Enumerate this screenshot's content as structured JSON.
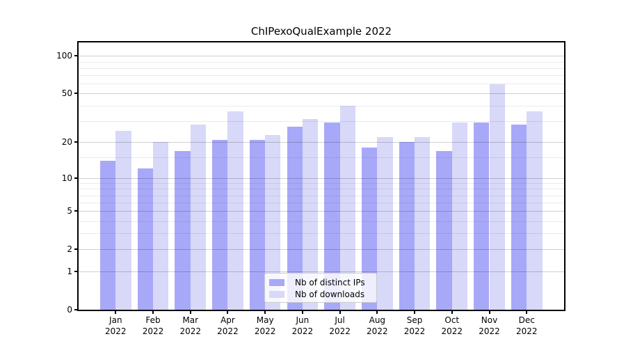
{
  "chart_data": {
    "type": "bar",
    "title": "ChIPexoQualExample 2022",
    "year_label": "2022",
    "months": [
      "Jan",
      "Feb",
      "Mar",
      "Apr",
      "May",
      "Jun",
      "Jul",
      "Aug",
      "Sep",
      "Oct",
      "Nov",
      "Dec"
    ],
    "series": [
      {
        "name": "Nb of distinct IPs",
        "color": "#a8a8f8",
        "values": [
          14,
          12,
          17,
          21,
          21,
          27,
          29,
          18,
          20,
          17,
          29,
          28
        ]
      },
      {
        "name": "Nb of downloads",
        "color": "#d8d8f8",
        "values": [
          25,
          20,
          28,
          36,
          23,
          31,
          40,
          22,
          22,
          29,
          59,
          36
        ]
      }
    ],
    "yscale": "log1p",
    "ylim": [
      0,
      128
    ],
    "yticks": [
      0,
      1,
      2,
      5,
      10,
      20,
      50,
      100
    ],
    "minor_yticks": [
      3,
      4,
      6,
      7,
      8,
      9,
      15,
      30,
      40,
      60,
      70,
      80,
      90
    ],
    "grid": true,
    "legend_position": "lower center"
  }
}
